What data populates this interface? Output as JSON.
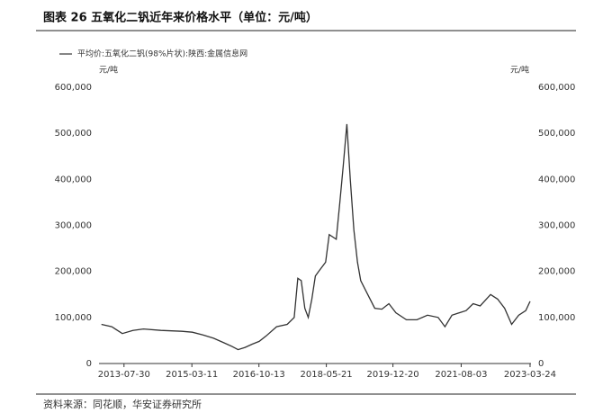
{
  "chart_data": {
    "type": "line",
    "title": "图表 26 五氧化二钒近年来价格水平（单位：元/吨）",
    "ylabel": "元/吨",
    "y2label": "元/吨",
    "x": [
      "2013-01-15",
      "2013-04-15",
      "2013-07-15",
      "2013-10-15",
      "2014-01-15",
      "2014-06-15",
      "2014-12-15",
      "2015-03-15",
      "2015-06-15",
      "2015-09-15",
      "2015-12-15",
      "2016-02-15",
      "2016-04-15",
      "2016-06-15",
      "2016-08-15",
      "2016-10-15",
      "2016-12-15",
      "2017-03-15",
      "2017-06-15",
      "2017-08-15",
      "2017-09-15",
      "2017-10-15",
      "2017-11-15",
      "2017-12-15",
      "2018-01-15",
      "2018-02-15",
      "2018-03-15",
      "2018-05-15",
      "2018-06-15",
      "2018-08-15",
      "2018-09-15",
      "2018-10-15",
      "2018-11-15",
      "2018-12-15",
      "2019-01-15",
      "2019-02-15",
      "2019-03-15",
      "2019-05-15",
      "2019-07-15",
      "2019-09-15",
      "2019-11-15",
      "2020-01-15",
      "2020-04-15",
      "2020-07-15",
      "2020-10-15",
      "2021-01-15",
      "2021-03-15",
      "2021-05-15",
      "2021-07-15",
      "2021-09-15",
      "2021-11-15",
      "2022-01-15",
      "2022-04-15",
      "2022-06-15",
      "2022-08-15",
      "2022-10-15",
      "2022-12-15",
      "2023-02-15",
      "2023-03-24"
    ],
    "series": [
      {
        "name": "平均价:五氧化二钒(98%片状):陕西:金属信息网",
        "color": "#333333",
        "values": [
          85000,
          80000,
          65000,
          72000,
          75000,
          72000,
          70000,
          68000,
          62000,
          55000,
          45000,
          38000,
          30000,
          35000,
          42000,
          48000,
          60000,
          80000,
          85000,
          100000,
          185000,
          180000,
          120000,
          100000,
          140000,
          190000,
          200000,
          220000,
          280000,
          270000,
          350000,
          430000,
          520000,
          400000,
          290000,
          220000,
          180000,
          150000,
          120000,
          118000,
          130000,
          110000,
          95000,
          95000,
          105000,
          100000,
          80000,
          105000,
          110000,
          115000,
          130000,
          125000,
          150000,
          140000,
          120000,
          85000,
          105000,
          115000,
          135000
        ]
      }
    ],
    "xlim": [
      "2012-12-25",
      "2023-04-01"
    ],
    "xticks": [
      "2013-07-30",
      "2015-03-11",
      "2016-10-13",
      "2018-05-21",
      "2019-12-20",
      "2021-08-03",
      "2023-03-24"
    ],
    "ylim": [
      0,
      600000
    ],
    "yticks": [
      0,
      {
        "value": 100000,
        "label": "100,000"
      },
      {
        "value": 200000,
        "label": "200,000"
      },
      {
        "value": 300000,
        "label": "300,000"
      },
      {
        "value": 400000,
        "label": "400,000"
      },
      {
        "value": 500000,
        "label": "500,000"
      },
      {
        "value": 600000,
        "label": "600,000"
      }
    ],
    "y2lim": [
      0,
      600000
    ],
    "y2ticks": [
      0,
      {
        "value": 100000,
        "label": "100,000"
      },
      {
        "value": 200000,
        "label": "200,000"
      },
      {
        "value": 300000,
        "label": "300,000"
      },
      {
        "value": 400000,
        "label": "400,000"
      },
      {
        "value": 500000,
        "label": "500,000"
      },
      {
        "value": 600000,
        "label": "600,000"
      }
    ]
  },
  "source": "资料来源：同花顺，华安证券研究所"
}
